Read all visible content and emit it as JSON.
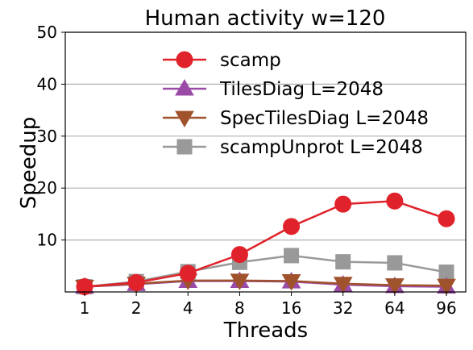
{
  "chart_data": {
    "type": "line",
    "title": "Human activity w=120",
    "xlabel": "Threads",
    "ylabel": "Speedup",
    "categories": [
      "1",
      "2",
      "4",
      "8",
      "16",
      "32",
      "64",
      "96"
    ],
    "ylim": [
      0,
      50
    ],
    "yticks": [
      10,
      20,
      30,
      40,
      50
    ],
    "grid": "horizontal",
    "legend_position": "upper-center",
    "series": [
      {
        "name": "scamp",
        "color": "#e0222a",
        "marker": "circle",
        "values": [
          1.0,
          1.8,
          3.6,
          7.2,
          12.6,
          16.9,
          17.5,
          14.1
        ]
      },
      {
        "name": "TilesDiag L=2048",
        "color": "#9b4aa8",
        "marker": "triangle-up",
        "values": [
          1.0,
          1.5,
          2.1,
          2.1,
          2.0,
          1.4,
          1.1,
          1.0
        ]
      },
      {
        "name": "SpecTilesDiag L=2048",
        "color": "#a0522d",
        "marker": "triangle-down",
        "values": [
          1.0,
          1.6,
          2.2,
          2.2,
          2.1,
          1.6,
          1.3,
          1.2
        ]
      },
      {
        "name": "scampUnprot L=2048",
        "color": "#999999",
        "marker": "square",
        "values": [
          1.0,
          2.0,
          3.9,
          5.7,
          7.0,
          5.8,
          5.6,
          3.8
        ]
      }
    ]
  }
}
